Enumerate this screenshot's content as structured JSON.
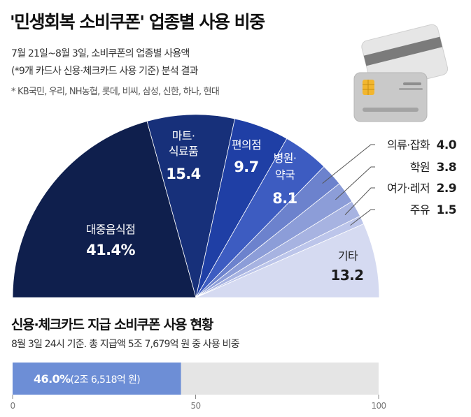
{
  "title": "'민생회복 소비쿠폰' 업종별 사용 비중",
  "subtitle_lines": [
    "7월 21일~8월 3일, 소비쿠폰의 업종별 사용액",
    "(*9개 카드사 신용·체크카드 사용 기준) 분석 결과",
    "* KB국민, 우리, NH농협, 롯데, 비씨, 삼성, 신한, 하나, 현대"
  ],
  "icon": "credit-card-icon",
  "chart_data": [
    {
      "type": "pie",
      "style": "half-donut",
      "unit": "%",
      "slices": [
        {
          "label": "대중음식점",
          "value": 41.4,
          "display": "41.4%",
          "color": "#0f1f4d",
          "label_color": "#ffffff"
        },
        {
          "label": "마트·식료품",
          "value": 15.4,
          "display": "15.4",
          "color": "#17307a",
          "label_color": "#ffffff"
        },
        {
          "label": "편의점",
          "value": 9.7,
          "display": "9.7",
          "color": "#1f3fa5",
          "label_color": "#ffffff"
        },
        {
          "label": "병원·약국",
          "value": 8.1,
          "display": "8.1",
          "color": "#3d5cc1",
          "label_color": "#ffffff"
        },
        {
          "label": "의류·잡화",
          "value": 4.0,
          "display": "4.0",
          "color": "#6c82cd",
          "label_color": "#1c1c1c"
        },
        {
          "label": "학원",
          "value": 3.8,
          "display": "3.8",
          "color": "#8c9dd8",
          "label_color": "#1c1c1c"
        },
        {
          "label": "여가·레저",
          "value": 2.9,
          "display": "2.9",
          "color": "#a7b3e1",
          "label_color": "#1c1c1c"
        },
        {
          "label": "주유",
          "value": 1.5,
          "display": "1.5",
          "color": "#bcc5ea",
          "label_color": "#1c1c1c"
        },
        {
          "label": "기타",
          "value": 13.2,
          "display": "13.2",
          "color": "#d5daf1",
          "label_color": "#1c1c1c"
        }
      ]
    },
    {
      "type": "bar",
      "orientation": "horizontal",
      "title": "신용·체크카드 지급 소비쿠폰 사용 현황",
      "subtitle": "8월 3일 24시 기준. 총 지급액 5조 7,679억 원 중 사용 비중",
      "value": 46.0,
      "value_label": "46.0%",
      "amount_label": "(2조 6,518억 원)",
      "xlim": [
        0,
        100
      ],
      "ticks": [
        "0",
        "50",
        "100"
      ],
      "tick_values": [
        0,
        50,
        100
      ],
      "bar_color": "#6d8ed6",
      "track_color": "#e5e5e5"
    }
  ]
}
